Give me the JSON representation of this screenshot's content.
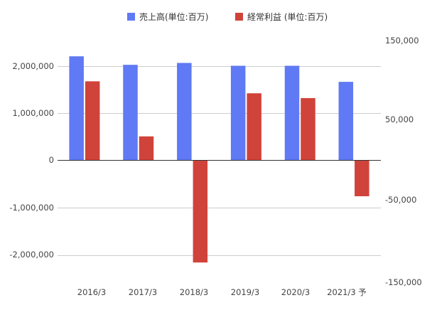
{
  "chart_data": {
    "type": "bar",
    "categories": [
      "2016/3",
      "2017/3",
      "2018/3",
      "2019/3",
      "2020/3",
      "2021/3 予"
    ],
    "series": [
      {
        "name": "売上高(単位:百万)",
        "axis": "left",
        "color": "#6079f4",
        "values": [
          2200000,
          2020000,
          2060000,
          2000000,
          2000000,
          1660000
        ]
      },
      {
        "name": "経常利益 (単位:百万)",
        "axis": "right",
        "color": "#d0433a",
        "values": [
          99000,
          30000,
          -128000,
          84000,
          78000,
          -45000
        ]
      }
    ],
    "left_axis": {
      "ylim": [
        -2500000,
        2500000
      ],
      "ticks": [
        2000000,
        1000000,
        0,
        -1000000,
        -2000000
      ],
      "tick_labels": [
        "2,000,000",
        "1,000,000",
        "0",
        "-1,000,000",
        "-2,000,000"
      ]
    },
    "right_axis": {
      "ylim": [
        -150000,
        150000
      ],
      "ticks": [
        150000,
        50000,
        -50000,
        -150000
      ],
      "tick_labels": [
        "150,000",
        "50,000",
        "-50,000",
        "-150,000"
      ]
    },
    "grid": true,
    "legend": "top-center"
  }
}
